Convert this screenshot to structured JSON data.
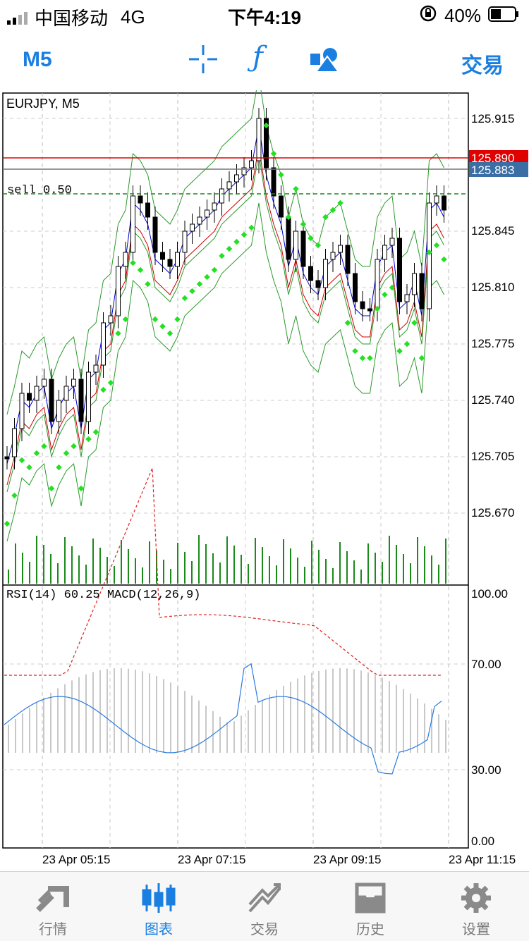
{
  "status_bar": {
    "carrier": "中国移动",
    "network": "4G",
    "time": "下午4:19",
    "battery": "40%"
  },
  "toolbar": {
    "timeframe": "M5",
    "trade": "交易"
  },
  "chart": {
    "symbol": "EURJPY, M5",
    "sell_label": "sell 0.50",
    "price_ticks": [
      "125.915",
      "125.845",
      "125.810",
      "125.775",
      "125.740",
      "125.705",
      "125.670"
    ],
    "bid_tag": "125.890",
    "ask_tag": "125.883",
    "sub_label": "RSI(14) 60.25 MACD(12,26,9)",
    "sub_ticks": [
      "100.00",
      "70.00",
      "30.00",
      "0.00"
    ],
    "time_labels": [
      "23 Apr 05:15",
      "23 Apr 07:15",
      "23 Apr 09:15",
      "23 Apr 11:15"
    ],
    "colors": {
      "bid": "#e00000",
      "ask": "#3a6ea5",
      "sar": "#22e022",
      "ma_fast": "#0000cc",
      "ma_slow": "#cc0000",
      "bands": "#2a9a2a",
      "rsi": "#2a7ae2",
      "macd_signal": "#dd2222"
    }
  },
  "tabs": [
    {
      "label": "行情",
      "icon": "quotes-icon"
    },
    {
      "label": "图表",
      "icon": "chart-icon"
    },
    {
      "label": "交易",
      "icon": "trade-icon"
    },
    {
      "label": "历史",
      "icon": "history-icon"
    },
    {
      "label": "设置",
      "icon": "settings-icon"
    }
  ]
}
